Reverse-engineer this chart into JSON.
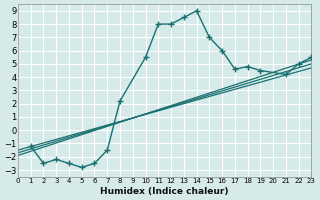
{
  "xlabel": "Humidex (Indice chaleur)",
  "background_color": "#d6eaea",
  "grid_color": "#ffffff",
  "line_color": "#1a7070",
  "xlim": [
    0,
    23
  ],
  "ylim": [
    -3.5,
    9.5
  ],
  "xticks": [
    0,
    1,
    2,
    3,
    4,
    5,
    6,
    7,
    8,
    9,
    10,
    11,
    12,
    13,
    14,
    15,
    16,
    17,
    18,
    19,
    20,
    21,
    22,
    23
  ],
  "yticks": [
    -3,
    -2,
    -1,
    0,
    1,
    2,
    3,
    4,
    5,
    6,
    7,
    8,
    9
  ],
  "main_line_x": [
    1,
    2,
    3,
    4,
    5,
    6,
    7,
    8,
    10,
    11,
    12,
    13,
    14,
    15,
    16,
    17,
    18,
    19,
    21,
    22,
    23
  ],
  "main_line_y": [
    -1.2,
    -2.5,
    -2.2,
    -2.5,
    -2.8,
    -2.5,
    -1.5,
    2.2,
    5.5,
    8.0,
    8.0,
    8.5,
    9.0,
    7.0,
    6.0,
    4.6,
    4.8,
    4.5,
    4.2,
    5.0,
    5.5
  ],
  "reg_line1_x": [
    0,
    23
  ],
  "reg_line1_y": [
    -1.9,
    5.3
  ],
  "reg_line2_x": [
    0,
    23
  ],
  "reg_line2_y": [
    -1.7,
    5.0
  ],
  "reg_line3_x": [
    0,
    23
  ],
  "reg_line3_y": [
    -1.5,
    4.7
  ]
}
